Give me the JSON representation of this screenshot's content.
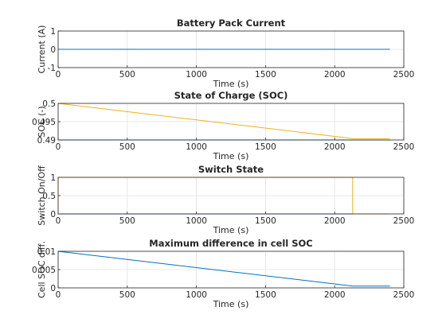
{
  "chart_data": [
    {
      "type": "line",
      "title": "Battery Pack Current",
      "xlabel": "Time (s)",
      "ylabel": "Current (A)",
      "xlim": [
        0,
        2500
      ],
      "ylim": [
        -1,
        1
      ],
      "xticks": [
        "0",
        "500",
        "1000",
        "1500",
        "2000",
        "2500"
      ],
      "yticks": [
        "-1",
        "0",
        "1"
      ],
      "ytick_values": [
        -1,
        0,
        1
      ],
      "grid": true,
      "series": [
        {
          "color": "#0072BD",
          "x": [
            0,
            2400
          ],
          "y": [
            0,
            0
          ]
        }
      ]
    },
    {
      "type": "line",
      "title": "State of Charge (SOC)",
      "xlabel": "Time (s)",
      "ylabel": "SOC (-)",
      "xlim": [
        0,
        2500
      ],
      "ylim": [
        0.49,
        0.5
      ],
      "xticks": [
        "0",
        "500",
        "1000",
        "1500",
        "2000",
        "2500"
      ],
      "yticks": [
        "0.49",
        "0.495",
        "0.5"
      ],
      "ytick_values": [
        0.49,
        0.495,
        0.5
      ],
      "grid": true,
      "series": [
        {
          "color": "#0072BD",
          "x": [
            0,
            2400
          ],
          "y": [
            0.49,
            0.49
          ]
        },
        {
          "color": "#EDB120",
          "x": [
            0,
            2130,
            2400
          ],
          "y": [
            0.5,
            0.4904,
            0.4904
          ]
        }
      ]
    },
    {
      "type": "line",
      "title": "Switch State",
      "xlabel": "Time (s)",
      "ylabel": "Switch On/Off",
      "xlim": [
        0,
        2500
      ],
      "ylim": [
        0,
        1
      ],
      "xticks": [
        "0",
        "500",
        "1000",
        "1500",
        "2000",
        "2500"
      ],
      "yticks": [
        "0",
        "0.5",
        "1"
      ],
      "ytick_values": [
        0,
        0.5,
        1
      ],
      "grid": true,
      "series": [
        {
          "color": "#0072BD",
          "x": [
            0,
            2400
          ],
          "y": [
            0,
            0
          ]
        },
        {
          "color": "#EDB120",
          "x": [
            0,
            0,
            2130,
            2130,
            2400
          ],
          "y": [
            0,
            1,
            1,
            0,
            0
          ]
        }
      ]
    },
    {
      "type": "line",
      "title": "Maximum difference in cell SOC",
      "xlabel": "Time (s)",
      "ylabel": "Cell SOC diff.",
      "xlim": [
        0,
        2500
      ],
      "ylim": [
        0,
        0.01
      ],
      "xticks": [
        "0",
        "500",
        "1000",
        "1500",
        "2000",
        "2500"
      ],
      "yticks": [
        "0",
        "0.005",
        "0.01"
      ],
      "ytick_values": [
        0,
        0.005,
        0.01
      ],
      "grid": true,
      "series": [
        {
          "color": "#0072BD",
          "x": [
            0,
            2130,
            2400
          ],
          "y": [
            0.01,
            0.0005,
            0.0005
          ]
        }
      ]
    }
  ]
}
